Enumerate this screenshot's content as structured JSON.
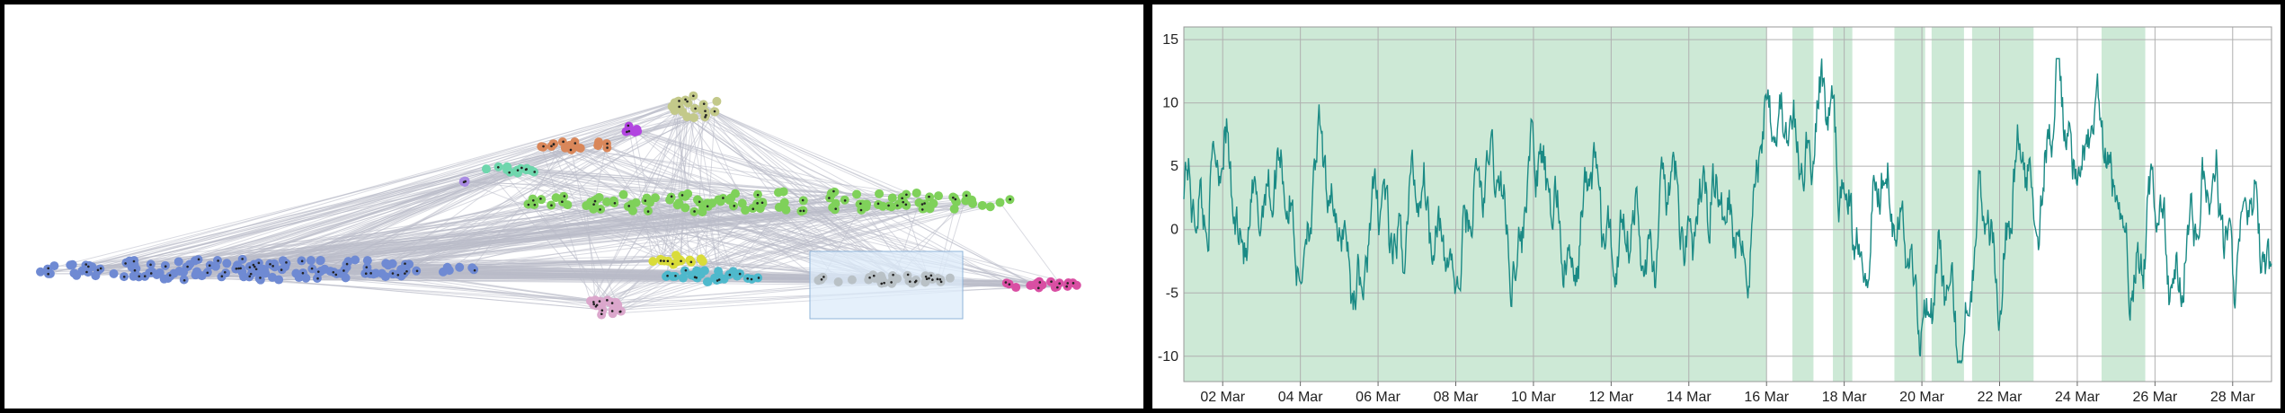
{
  "network": {
    "edge_color": "#b9bcc9",
    "selection_fill": "#dcebfa",
    "selection_stroke": "#8fb4d9",
    "clusters": [
      {
        "name": "olive",
        "color": "#c3c98a"
      },
      {
        "name": "purple",
        "color": "#b245e0"
      },
      {
        "name": "orange",
        "color": "#d9875a"
      },
      {
        "name": "teal",
        "color": "#6fd6ad"
      },
      {
        "name": "violet",
        "color": "#a98be3"
      },
      {
        "name": "green",
        "color": "#7fd15a"
      },
      {
        "name": "blue",
        "color": "#6f8ad3"
      },
      {
        "name": "pink",
        "color": "#dba7cc"
      },
      {
        "name": "yellow",
        "color": "#d9dc3a"
      },
      {
        "name": "cyan",
        "color": "#4fb9cc"
      },
      {
        "name": "gray",
        "color": "#b9c1c6"
      },
      {
        "name": "magenta",
        "color": "#d94fa3"
      }
    ]
  },
  "chart_data": {
    "type": "line",
    "x_start": "2024-03-01",
    "x_end": "2024-03-29",
    "ylim": [
      -12,
      16
    ],
    "yticks": [
      -10,
      -5,
      0,
      5,
      10,
      15
    ],
    "xtick_labels": [
      "02 Mar",
      "04 Mar",
      "06 Mar",
      "08 Mar",
      "10 Mar",
      "12 Mar",
      "14 Mar",
      "16 Mar",
      "18 Mar",
      "20 Mar",
      "22 Mar",
      "24 Mar",
      "26 Mar",
      "28 Mar"
    ],
    "xtick_dates": [
      "2024-03-02",
      "2024-03-04",
      "2024-03-06",
      "2024-03-08",
      "2024-03-10",
      "2024-03-12",
      "2024-03-14",
      "2024-03-16",
      "2024-03-18",
      "2024-03-20",
      "2024-03-22",
      "2024-03-24",
      "2024-03-26",
      "2024-03-28"
    ],
    "grid": true,
    "line_color": "#1a8a85",
    "band_color": "#cde9d6",
    "highlight_bands": [
      [
        "2024-03-01 00:00",
        "2024-03-16 00:00"
      ],
      [
        "2024-03-16 16:00",
        "2024-03-17 05:00"
      ],
      [
        "2024-03-17 17:00",
        "2024-03-18 05:00"
      ],
      [
        "2024-03-19 07:00",
        "2024-03-20 02:00"
      ],
      [
        "2024-03-20 06:00",
        "2024-03-21 02:00"
      ],
      [
        "2024-03-21 07:00",
        "2024-03-22 21:00"
      ],
      [
        "2024-03-24 15:00",
        "2024-03-25 18:00"
      ]
    ],
    "series": [
      {
        "x": [
          "2024-03-01 00:00",
          "2024-03-01 12:00",
          "2024-03-02 00:00",
          "2024-03-02 12:00",
          "2024-03-03 00:00",
          "2024-03-03 12:00",
          "2024-03-04 00:00",
          "2024-03-04 12:00",
          "2024-03-05 00:00",
          "2024-03-05 12:00",
          "2024-03-06 00:00",
          "2024-03-06 12:00",
          "2024-03-07 00:00",
          "2024-03-07 12:00",
          "2024-03-08 00:00",
          "2024-03-08 12:00",
          "2024-03-09 00:00",
          "2024-03-09 12:00",
          "2024-03-10 00:00",
          "2024-03-10 12:00",
          "2024-03-11 00:00",
          "2024-03-11 12:00",
          "2024-03-12 00:00",
          "2024-03-12 12:00",
          "2024-03-13 00:00",
          "2024-03-13 12:00",
          "2024-03-14 00:00",
          "2024-03-14 12:00",
          "2024-03-15 00:00",
          "2024-03-15 12:00",
          "2024-03-16 00:00",
          "2024-03-16 12:00",
          "2024-03-17 00:00",
          "2024-03-17 12:00",
          "2024-03-18 00:00",
          "2024-03-18 12:00",
          "2024-03-19 00:00",
          "2024-03-19 12:00",
          "2024-03-20 00:00",
          "2024-03-20 12:00",
          "2024-03-21 00:00",
          "2024-03-21 12:00",
          "2024-03-22 00:00",
          "2024-03-22 12:00",
          "2024-03-23 00:00",
          "2024-03-23 12:00",
          "2024-03-24 00:00",
          "2024-03-24 12:00",
          "2024-03-25 00:00",
          "2024-03-25 12:00",
          "2024-03-26 00:00",
          "2024-03-26 12:00",
          "2024-03-27 00:00",
          "2024-03-27 12:00",
          "2024-03-28 00:00",
          "2024-03-28 12:00",
          "2024-03-29 00:00"
        ],
        "values": [
          4,
          1,
          7,
          -1,
          2,
          5,
          -3,
          6,
          0,
          -5,
          3,
          -2,
          4,
          0,
          -4,
          3,
          5,
          -3,
          6,
          2,
          -4,
          5,
          -2,
          1,
          -3,
          4,
          -1,
          3,
          2,
          -2,
          10,
          8,
          5,
          11,
          3,
          -2,
          5,
          0,
          -7,
          -3,
          -9,
          2,
          -4,
          6,
          2,
          11,
          4,
          9,
          2,
          -4,
          3,
          -5,
          1,
          4,
          -3,
          2,
          -5
        ]
      }
    ]
  }
}
